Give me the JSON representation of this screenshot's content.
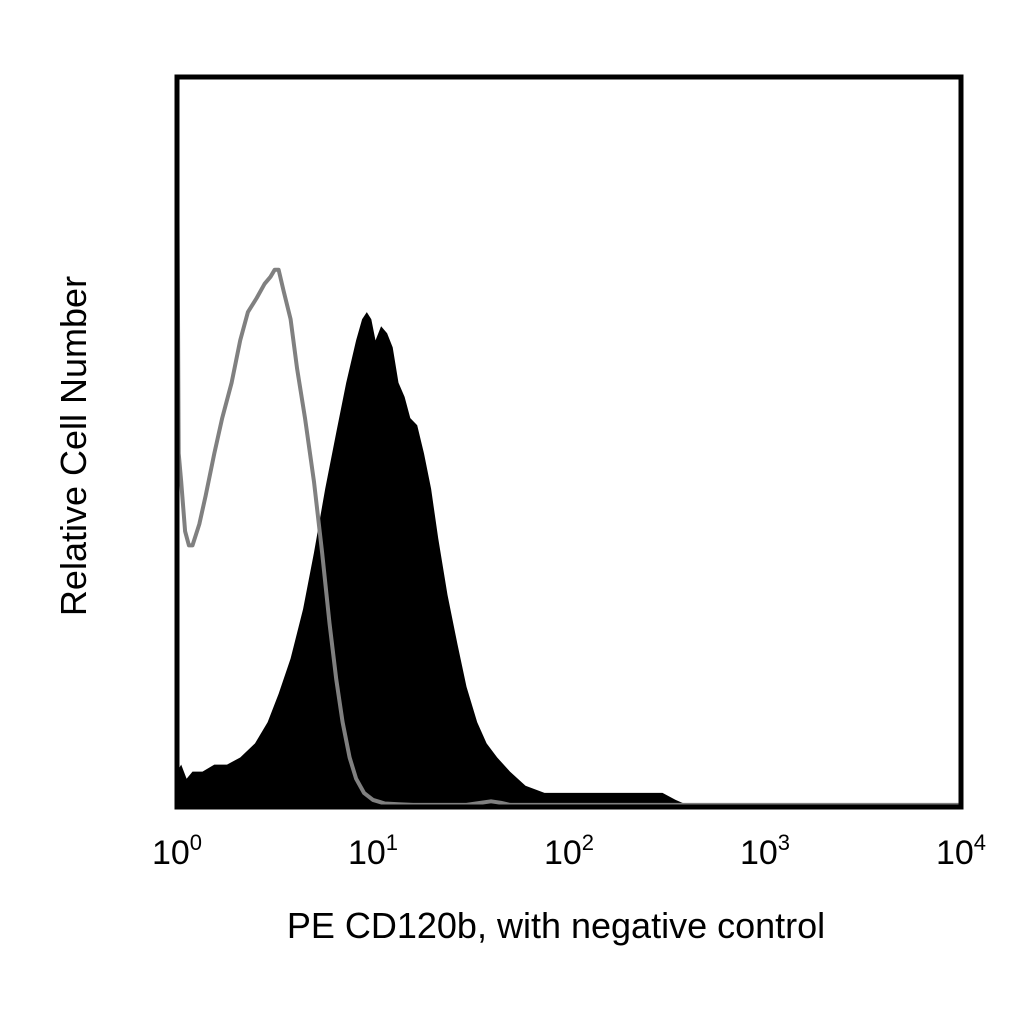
{
  "chart_data": {
    "type": "area",
    "xlabel": "PE CD120b, with negative control",
    "ylabel": "Relative Cell Number",
    "x_scale": "log",
    "xlim": [
      1,
      10000
    ],
    "ylim": [
      0,
      100
    ],
    "grid": false,
    "x_ticks": [
      {
        "base": "10",
        "exp": "0",
        "value": 1
      },
      {
        "base": "10",
        "exp": "1",
        "value": 10
      },
      {
        "base": "10",
        "exp": "2",
        "value": 100
      },
      {
        "base": "10",
        "exp": "3",
        "value": 1000
      },
      {
        "base": "10",
        "exp": "4",
        "value": 10000
      }
    ],
    "series": [
      {
        "style": "filled",
        "color": "#000000",
        "x": [
          1.0,
          1.05,
          1.12,
          1.2,
          1.35,
          1.55,
          1.8,
          2.1,
          2.5,
          2.9,
          3.3,
          3.8,
          4.4,
          5.0,
          5.7,
          6.5,
          7.3,
          8.2,
          8.8,
          9.3,
          9.8,
          10.3,
          11.0,
          11.8,
          12.6,
          13.5,
          14.5,
          15.5,
          16.8,
          18.2,
          19.8,
          21.5,
          24.0,
          27.0,
          30.0,
          34.0,
          38.0,
          43.0,
          50.0,
          60.0,
          75.0,
          100.0,
          150.0,
          200.0,
          250.0,
          300.0,
          350.0,
          400.0,
          450.0,
          1000.0,
          10000.0
        ],
        "y": [
          5,
          6,
          4,
          5,
          5,
          6,
          6,
          7,
          9,
          12,
          16,
          21,
          28,
          36,
          45,
          53,
          60,
          66,
          69,
          70,
          69,
          66,
          68,
          67,
          65,
          60,
          58,
          55,
          54,
          50,
          45,
          38,
          30,
          23,
          17,
          12,
          9,
          7,
          5,
          3,
          2,
          2,
          2,
          2,
          2,
          2,
          1,
          0.3,
          0,
          0,
          0
        ]
      },
      {
        "style": "outline",
        "color": "#808080",
        "x": [
          1.0,
          1.02,
          1.05,
          1.1,
          1.15,
          1.2,
          1.3,
          1.4,
          1.55,
          1.7,
          1.9,
          2.1,
          2.3,
          2.55,
          2.8,
          3.0,
          3.15,
          3.3,
          3.5,
          3.8,
          4.1,
          4.5,
          5.0,
          5.5,
          6.0,
          6.5,
          7.0,
          7.6,
          8.2,
          9.0,
          10.0,
          11.5,
          13.5,
          16.0,
          20.0,
          30.0,
          40.0,
          45.0,
          50.0,
          100.0,
          1000.0,
          10000.0
        ],
        "y": [
          97,
          50,
          46,
          39,
          37,
          37,
          40,
          44,
          50,
          55,
          60,
          66,
          70,
          72,
          74,
          75,
          76,
          76,
          73,
          69,
          62,
          55,
          46,
          36,
          26,
          18,
          12,
          7,
          4,
          2,
          1,
          0.5,
          0.4,
          0.3,
          0.3,
          0.3,
          0.8,
          0.6,
          0.3,
          0.3,
          0.3,
          0.3
        ]
      }
    ]
  }
}
